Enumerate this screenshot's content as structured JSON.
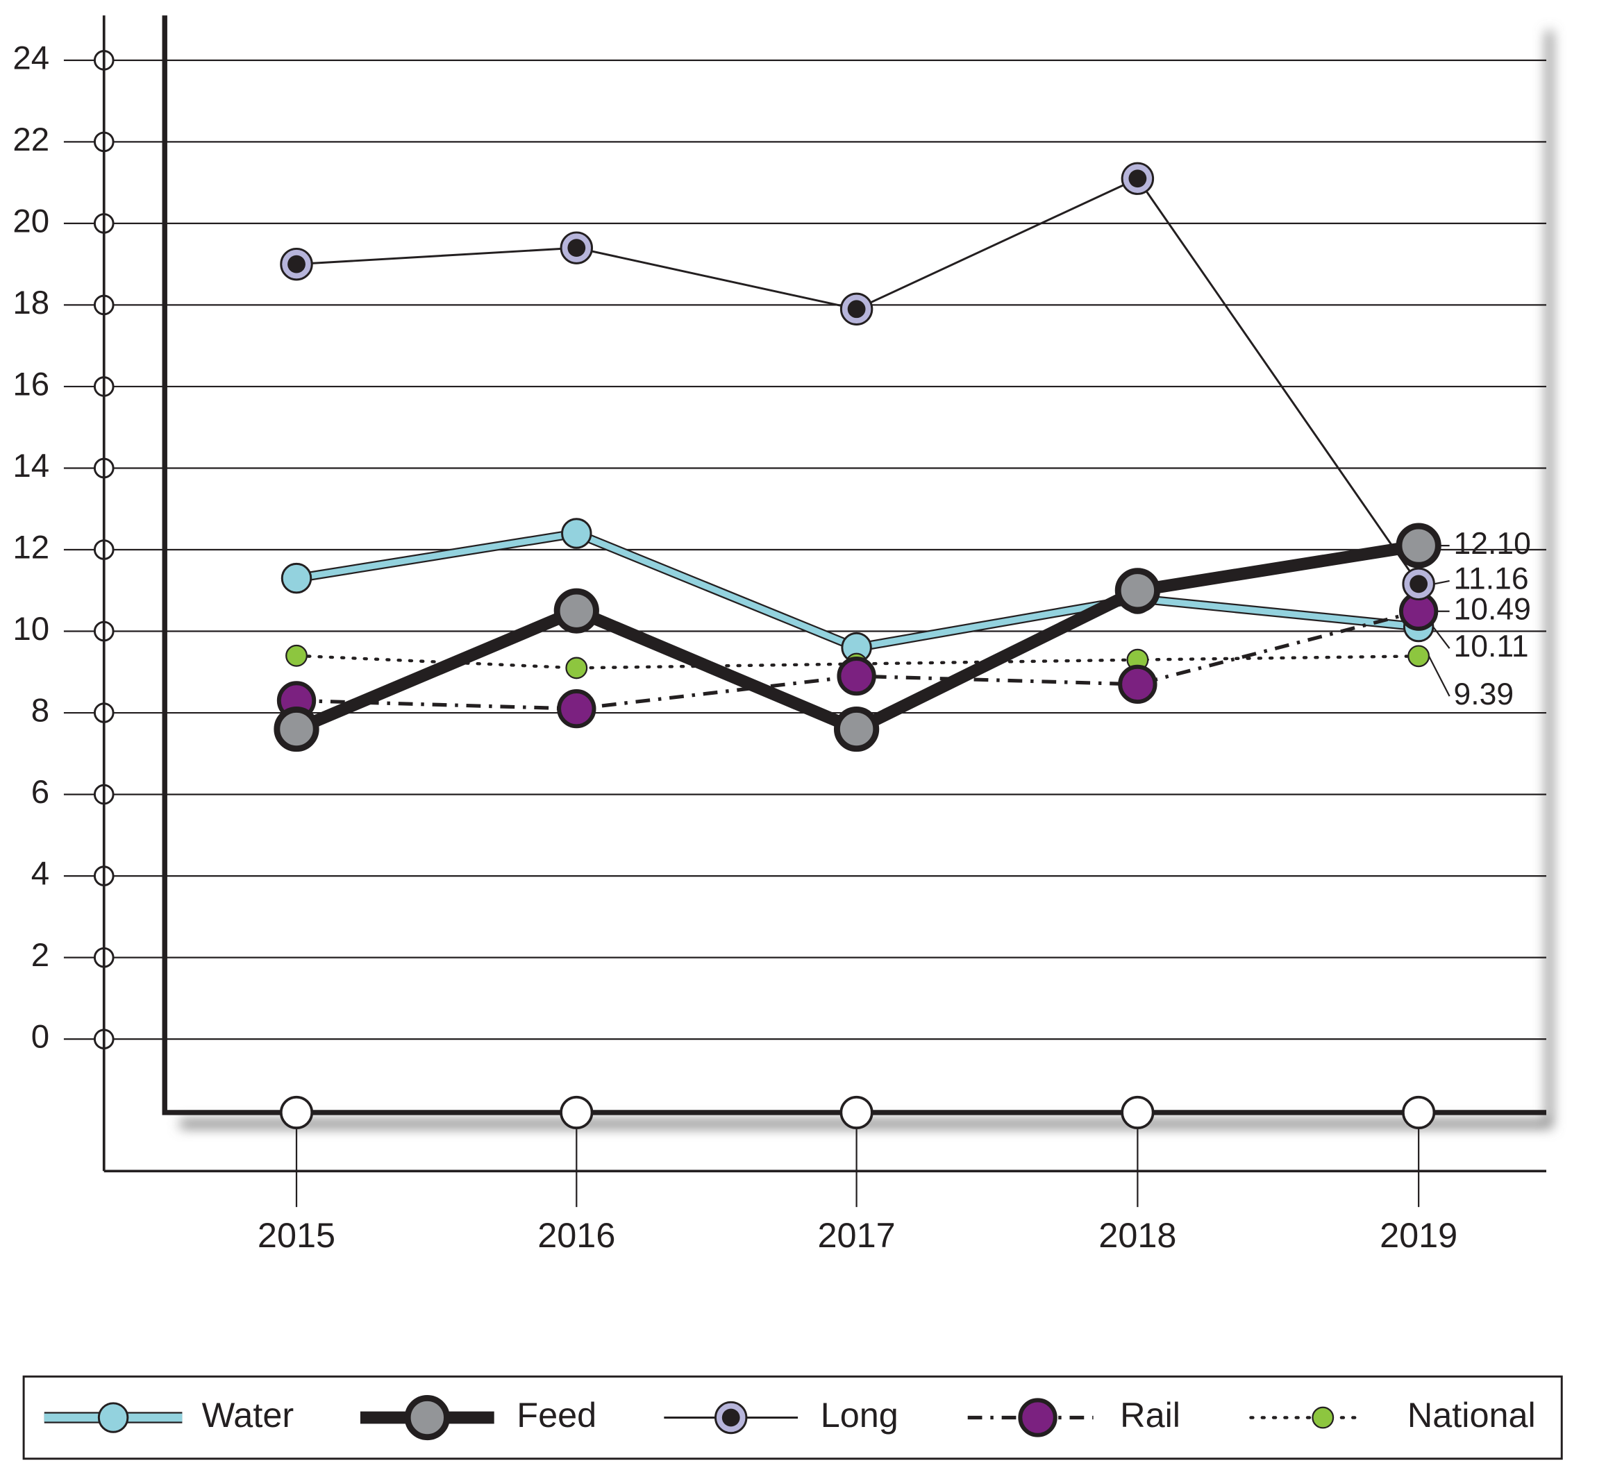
{
  "chart_data": {
    "type": "line",
    "categories": [
      "2015",
      "2016",
      "2017",
      "2018",
      "2019"
    ],
    "series": [
      {
        "name": "Water",
        "color": "#93d2de",
        "values": [
          11.3,
          12.4,
          9.6,
          10.8,
          10.11
        ],
        "value_labels": [
          null,
          null,
          null,
          null,
          "10.11"
        ]
      },
      {
        "name": "Feed",
        "color": "#939598",
        "values": [
          7.6,
          10.5,
          7.6,
          11.0,
          12.1
        ],
        "value_labels": [
          null,
          null,
          null,
          null,
          "12.10"
        ]
      },
      {
        "name": "Long",
        "color": "#b7b5db",
        "values": [
          19.0,
          19.4,
          17.9,
          21.1,
          11.16
        ],
        "value_labels": [
          null,
          null,
          null,
          null,
          "11.16"
        ]
      },
      {
        "name": "Rail",
        "color": "#7b2180",
        "values": [
          8.3,
          8.1,
          8.9,
          8.7,
          10.49
        ],
        "value_labels": [
          null,
          null,
          null,
          null,
          "10.49"
        ]
      },
      {
        "name": "National",
        "color": "#8dc63f",
        "values": [
          9.4,
          9.1,
          9.2,
          9.3,
          9.39
        ],
        "value_labels": [
          null,
          null,
          null,
          null,
          "9.39"
        ]
      }
    ],
    "ylim": [
      -1.8,
      25.1
    ],
    "yticks": [
      0,
      2,
      4,
      6,
      8,
      10,
      12,
      14,
      16,
      18,
      20,
      22,
      24
    ],
    "grid": true
  }
}
